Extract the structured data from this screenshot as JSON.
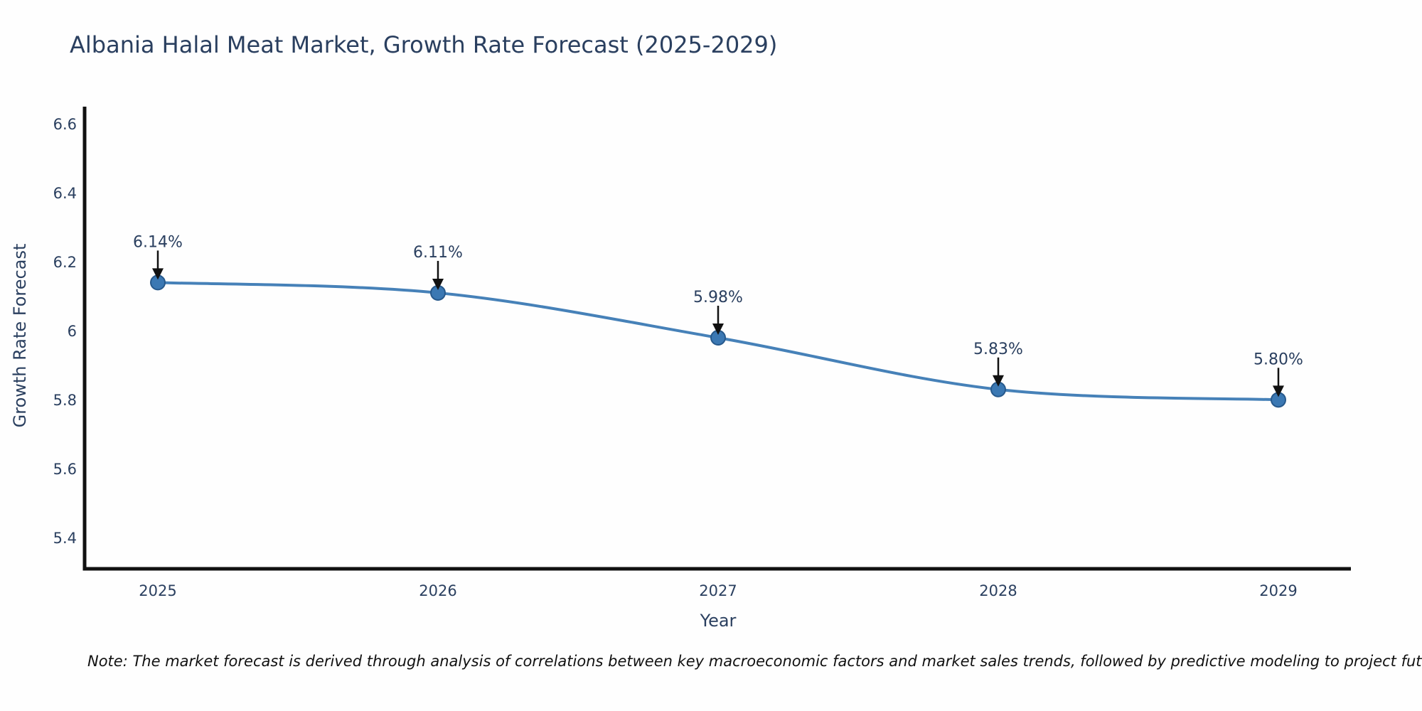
{
  "note": "Note: The market forecast is derived through analysis of correlations between key macroeconomic factors and market sales trends, followed by predictive modeling to project future sales",
  "chart_data": {
    "type": "line",
    "title": "Albania Halal Meat Market, Growth Rate Forecast (2025-2029)",
    "xlabel": "Year",
    "ylabel": "Growth Rate Forecast",
    "categories": [
      "2025",
      "2026",
      "2027",
      "2028",
      "2029"
    ],
    "values": [
      6.14,
      6.11,
      5.98,
      5.83,
      5.8
    ],
    "point_labels": [
      "6.14%",
      "6.11%",
      "5.98%",
      "5.83%",
      "5.80%"
    ],
    "unit": "%",
    "yticks": [
      5.4,
      5.6,
      5.8,
      6,
      6.2,
      6.4,
      6.6
    ],
    "ytick_labels": [
      "5.4",
      "5.6",
      "5.8",
      "6",
      "6.2",
      "6.4",
      "6.6"
    ],
    "ylim": [
      5.31,
      6.65
    ],
    "grid": false,
    "legend_position": "none",
    "line_shape": "spline",
    "annotations": "arrows-pointing-down-to-markers",
    "colors": {
      "line": "#4681b8",
      "marker_fill": "#3b78b3",
      "marker_edge": "#27598c",
      "axis": "#111111",
      "tick_text": "#2a3f5f",
      "annotation_text": "#2a3f5f",
      "arrow": "#111111",
      "note_text": "#111111",
      "background": "#fefefe"
    }
  }
}
